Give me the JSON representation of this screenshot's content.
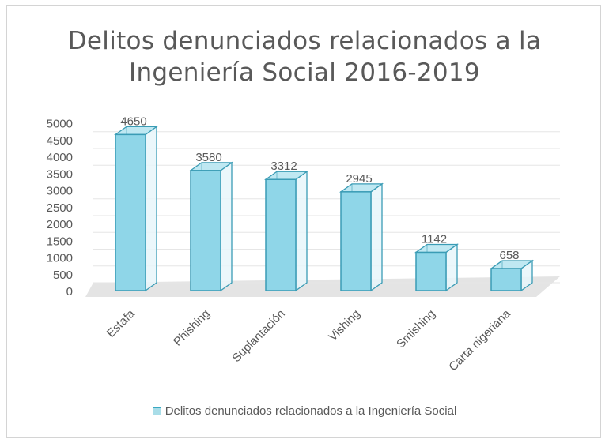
{
  "chart_data": {
    "type": "bar",
    "style": "3d-column",
    "title_lines": [
      "Delitos denunciados relacionados a la",
      "Ingeniería Social 2016-2019"
    ],
    "categories": [
      "Estafa",
      "Phishing",
      "Suplantación",
      "Vishing",
      "Smishing",
      "Carta nigeriana"
    ],
    "series": [
      {
        "name": "Delitos denunciados relacionados a la Ingeniería Social",
        "values": [
          4650,
          3580,
          3312,
          2945,
          1142,
          658
        ]
      }
    ],
    "ylim": [
      0,
      5000
    ],
    "yticks": [
      0,
      500,
      1000,
      1500,
      2000,
      2500,
      3000,
      3500,
      4000,
      4500,
      5000
    ],
    "grid": true,
    "legend_position": "bottom",
    "colors": {
      "bar_fill": "#8fd6e8",
      "bar_edge": "#3a9cb5",
      "text": "#595959",
      "gridline": "#e6e6e6",
      "floor": "#e4e4e4"
    }
  }
}
